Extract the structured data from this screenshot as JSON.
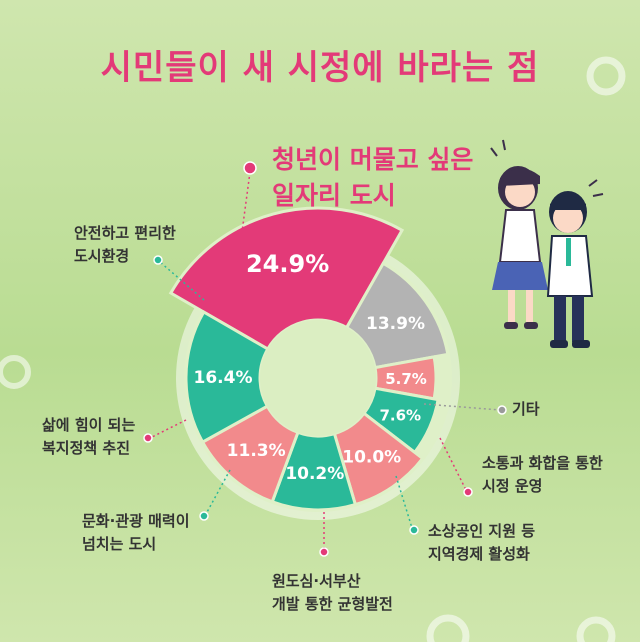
{
  "title": "시민들이 새 시정에 바라는 점",
  "colors": {
    "pink": "#e33a78",
    "teal": "#2ab999",
    "salmon": "#f28a8c",
    "gray": "#b3b3b3",
    "leader_pink": "#e33a78",
    "leader_teal": "#2ab999",
    "leader_gray": "#9a9a9a"
  },
  "illustration": "students-cheering",
  "chart_data": {
    "type": "pie",
    "donut": true,
    "slices": [
      {
        "label": "청년이 머물고 싶은\n일자리 도시",
        "value": 24.9,
        "display": "24.9%",
        "color": "#e33a78"
      },
      {
        "label": "기타",
        "value": 13.9,
        "display": "13.9%",
        "color": "#b3b3b3"
      },
      {
        "label": "소통과 화합을 통한\n시정 운영",
        "value": 5.7,
        "display": "5.7%",
        "color": "#f28a8c"
      },
      {
        "label": "소상공인 지원 등\n지역경제 활성화",
        "value": 7.6,
        "display": "7.6%",
        "color": "#2ab999"
      },
      {
        "label": "원도심·서부산\n개발 통한 균형발전",
        "value": 10.0,
        "display": "10.0%",
        "color": "#f28a8c"
      },
      {
        "label": "문화·관광 매력이\n넘치는 도시",
        "value": 10.2,
        "display": "10.2%",
        "color": "#2ab999"
      },
      {
        "label": "삶에 힘이 되는\n복지정책 추진",
        "value": 11.3,
        "display": "11.3%",
        "color": "#f28a8c"
      },
      {
        "label": "안전하고 편리한\n도시환경",
        "value": 16.4,
        "display": "16.4%",
        "color": "#2ab999"
      }
    ]
  }
}
